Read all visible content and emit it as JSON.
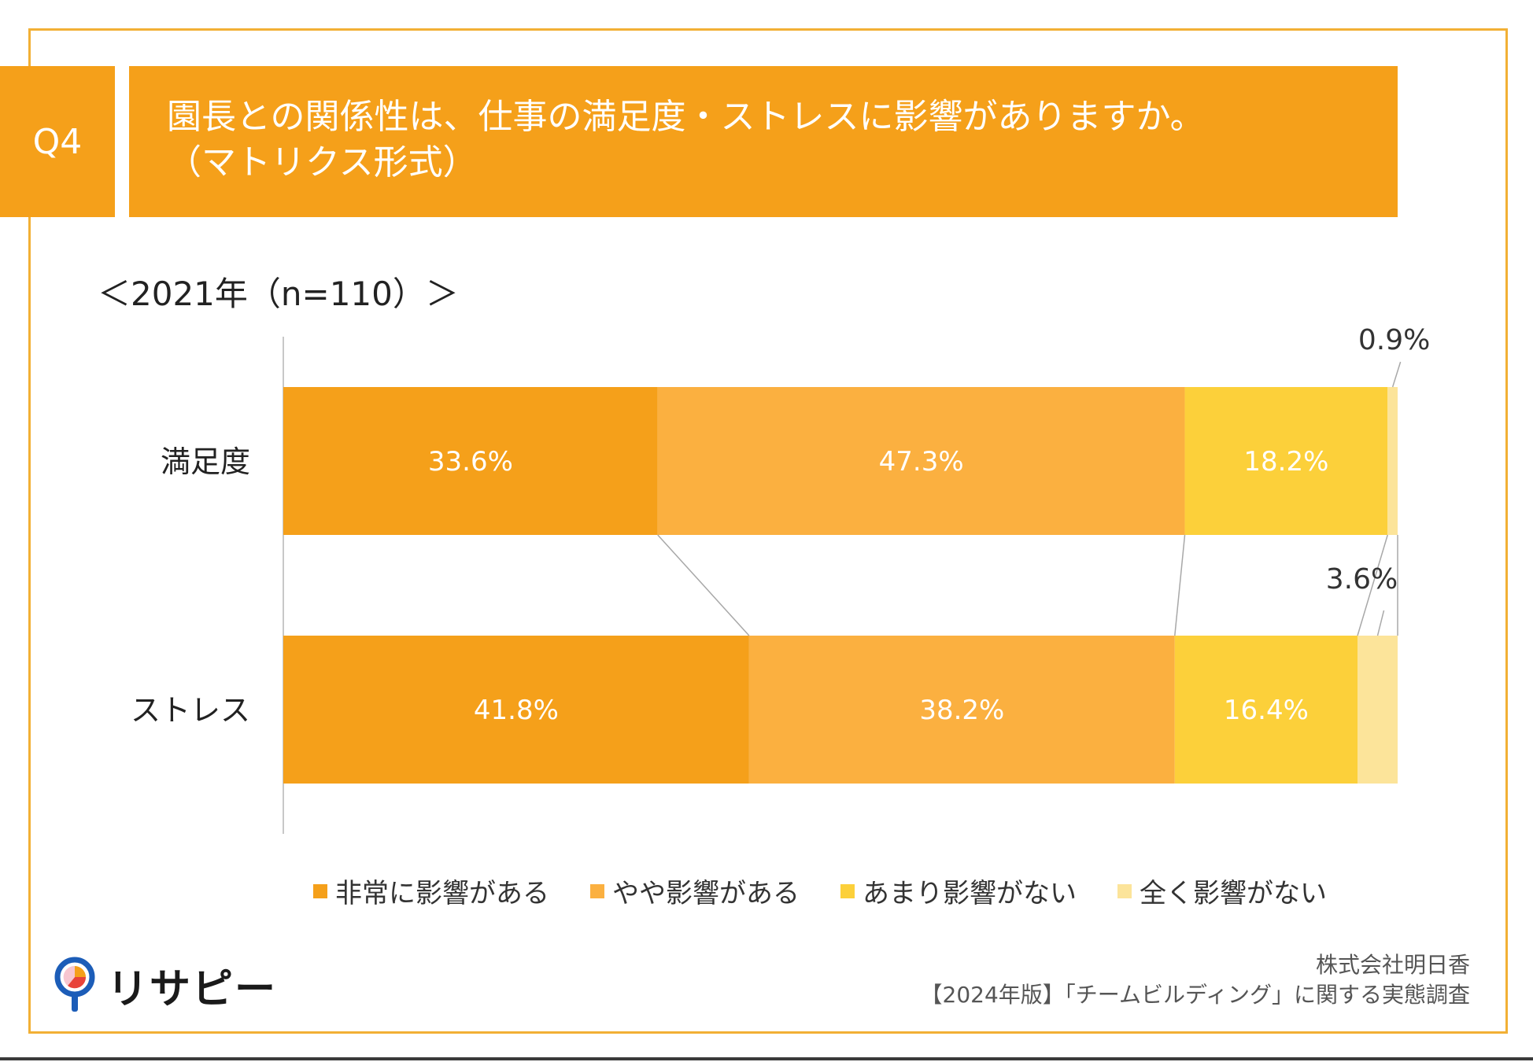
{
  "header": {
    "question_number": "Q4",
    "title_line1": "園長との関係性は、仕事の満足度・ストレスに影響がありますか。",
    "title_line2": "（マトリクス形式）"
  },
  "year_label": "＜2021年（n=110）＞",
  "chart_data": {
    "type": "bar",
    "orientation": "horizontal-stacked-100",
    "categories": [
      "満足度",
      "ストレス"
    ],
    "series": [
      {
        "name": "非常に影響がある",
        "values": [
          33.6,
          41.8
        ],
        "color": "#F5A01A"
      },
      {
        "name": "やや影響がある",
        "values": [
          47.3,
          38.2
        ],
        "color": "#FBB040"
      },
      {
        "name": "あまり影響がない",
        "values": [
          18.2,
          16.4
        ],
        "color": "#FCD03A"
      },
      {
        "name": "全く影響がない",
        "values": [
          0.9,
          3.6
        ],
        "color": "#FCE49A"
      }
    ],
    "data_labels": [
      [
        "33.6%",
        "47.3%",
        "18.2%",
        "0.9%"
      ],
      [
        "41.8%",
        "38.2%",
        "16.4%",
        "3.6%"
      ]
    ],
    "xlim": [
      0,
      100
    ],
    "legend_position": "bottom"
  },
  "logo": {
    "text": "リサピー"
  },
  "source": {
    "line1": "株式会社明日香",
    "line2": "【2024年版】「チームビルディング」に関する実態調査"
  }
}
